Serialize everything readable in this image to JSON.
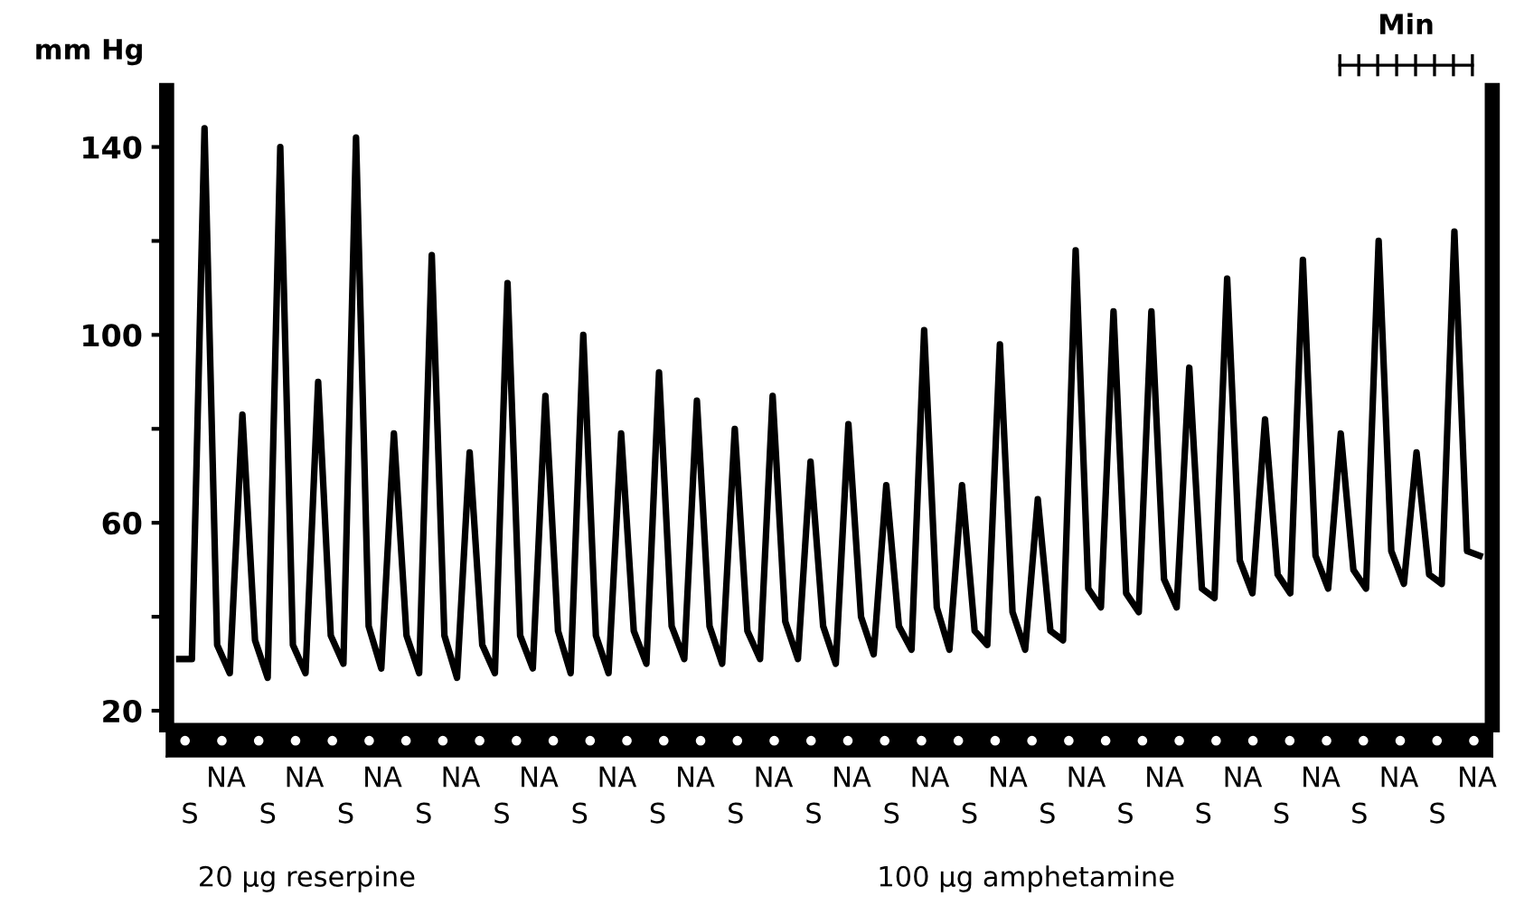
{
  "chart_data": {
    "type": "line",
    "ylabel": "mm Hg",
    "tick_labels": "y",
    "grid": false,
    "marker": "none",
    "line_style": "solid",
    "ylim": [
      17,
      152
    ],
    "yticks": [
      20,
      {
        "value": 40,
        "label": null
      },
      60,
      {
        "value": 80,
        "label": null
      },
      100,
      {
        "value": 120,
        "label": null
      },
      140
    ],
    "categories": [
      null,
      null,
      null,
      null,
      null,
      null,
      null,
      null,
      null,
      null,
      null,
      null,
      null,
      null,
      null,
      null,
      null,
      null,
      null,
      null,
      null,
      null,
      null,
      null,
      null,
      null,
      null,
      null,
      null,
      null,
      null,
      null,
      null,
      null,
      null,
      null,
      null,
      null,
      null,
      null,
      null,
      null,
      null,
      null,
      null,
      null,
      null,
      null,
      null,
      null,
      null,
      null,
      null,
      null,
      null,
      null,
      null,
      null,
      null,
      null,
      null,
      null,
      null,
      null,
      null,
      null,
      null,
      null,
      null,
      null,
      null,
      null,
      null,
      null,
      null,
      null,
      null,
      null,
      null,
      null,
      null,
      null,
      null,
      null,
      null,
      null,
      null,
      null,
      null,
      null,
      null,
      null,
      null,
      null,
      null,
      null,
      null,
      null,
      null,
      null,
      null,
      null,
      null,
      null
    ],
    "series": [
      {
        "color": "#000000",
        "values": [
          31,
          31,
          144,
          34,
          28,
          83,
          35,
          27,
          140,
          34,
          28,
          90,
          36,
          30,
          142,
          38,
          29,
          79,
          36,
          28,
          117,
          36,
          27,
          75,
          34,
          28,
          111,
          36,
          29,
          87,
          37,
          28,
          100,
          36,
          28,
          79,
          37,
          30,
          92,
          38,
          31,
          86,
          38,
          30,
          80,
          37,
          31,
          87,
          39,
          31,
          73,
          38,
          30,
          81,
          40,
          32,
          68,
          38,
          33,
          101,
          42,
          33,
          68,
          37,
          34,
          98,
          41,
          33,
          65,
          37,
          35,
          118,
          46,
          42,
          105,
          45,
          41,
          105,
          48,
          42,
          93,
          46,
          44,
          112,
          52,
          45,
          82,
          49,
          45,
          116,
          53,
          46,
          79,
          50,
          46,
          120,
          54,
          47,
          75,
          49,
          47,
          122,
          54,
          53
        ]
      }
    ],
    "annotations": [
      "Min",
      "NA",
      "NA",
      "NA",
      "NA",
      "NA",
      "NA",
      "NA",
      "NA",
      "NA",
      "NA",
      "NA",
      "NA",
      "NA",
      "NA",
      "NA",
      "NA",
      "NA",
      "S",
      "S",
      "S",
      "S",
      "S",
      "S",
      "S",
      "S",
      "S",
      "S",
      "S",
      "S",
      "S",
      "S",
      "S",
      "S",
      "S",
      "20 µg reserpine",
      "100 µg amphetamine"
    ]
  }
}
